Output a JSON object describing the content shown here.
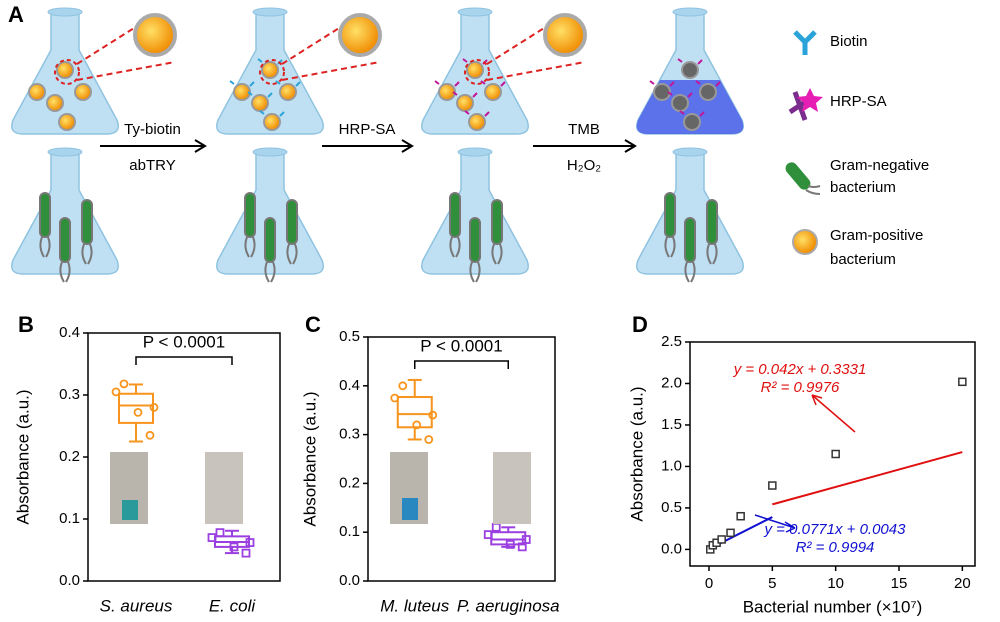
{
  "diagram": {
    "label": "A",
    "steps": [
      {
        "above": "Ty-biotin",
        "below": "abTRY"
      },
      {
        "above": "HRP-SA"
      },
      {
        "above": "TMB",
        "below": "H₂O₂"
      }
    ],
    "legend": [
      "Biotin",
      "HRP-SA",
      "Gram-negative bacterium",
      "Gram-positive bacterium"
    ]
  },
  "chart_data": [
    {
      "type": "box",
      "label": "B",
      "ylabel": "Absorbance (a.u.)",
      "annotation": "P < 0.0001",
      "categories": [
        "S. aureus",
        "E. coli"
      ],
      "colors": [
        "#f7941d",
        "#9b3fe0"
      ],
      "boxes": [
        {
          "min": 0.225,
          "q1": 0.255,
          "median": 0.283,
          "q3": 0.302,
          "max": 0.317,
          "points": [
            0.318,
            0.305,
            0.28,
            0.272,
            0.235
          ]
        },
        {
          "min": 0.045,
          "q1": 0.055,
          "median": 0.063,
          "q3": 0.072,
          "max": 0.081,
          "points": [
            0.078,
            0.07,
            0.062,
            0.055,
            0.045
          ]
        }
      ],
      "ylim": [
        0,
        0.4
      ],
      "yticks": [
        {
          "value": 0,
          "label": "0.0"
        },
        0.1,
        0.2,
        0.3,
        0.4
      ]
    },
    {
      "type": "box",
      "label": "C",
      "ylabel": "Absorbance (a.u.)",
      "annotation": "P < 0.0001",
      "categories": [
        "M. luteus",
        "P. aeruginosa"
      ],
      "colors": [
        "#f7941d",
        "#9b3fe0"
      ],
      "boxes": [
        {
          "min": 0.29,
          "q1": 0.315,
          "median": 0.342,
          "q3": 0.377,
          "max": 0.412,
          "points": [
            0.4,
            0.375,
            0.34,
            0.32,
            0.29
          ]
        },
        {
          "min": 0.07,
          "q1": 0.075,
          "median": 0.085,
          "q3": 0.1,
          "max": 0.11,
          "points": [
            0.11,
            0.095,
            0.085,
            0.075,
            0.07
          ]
        }
      ],
      "ylim": [
        0,
        0.5
      ],
      "yticks": [
        {
          "value": 0,
          "label": "0.0"
        },
        0.1,
        0.2,
        0.3,
        0.4,
        0.5
      ]
    },
    {
      "type": "scatter",
      "label": "D",
      "ylabel": "Absorbance (a.u.)",
      "xlabel": "Bacterial number (×10⁷)",
      "x": [
        0.1,
        0.3,
        0.6,
        1,
        1.7,
        2.5,
        5,
        10,
        20
      ],
      "values": [
        0.0,
        0.05,
        0.08,
        0.12,
        0.2,
        0.4,
        0.77,
        1.15,
        2.02
      ],
      "fits": [
        {
          "color": "#1010d0",
          "x_range": [
            0,
            5
          ],
          "equation": "y = 0.0771x + 0.0043",
          "r2": "R² = 0.9994"
        },
        {
          "color": "#e01010",
          "x_range": [
            5,
            20
          ],
          "equation": "y = 0.042x + 0.3331",
          "r2": "R² = 0.9976"
        }
      ],
      "xlim": [
        -1.5,
        21
      ],
      "xticks": [
        0,
        5,
        10,
        15,
        20
      ],
      "ylim": [
        -0.2,
        2.5
      ],
      "yticks": [
        {
          "value": 0,
          "label": "0.0"
        },
        0.5,
        {
          "value": 1,
          "label": "1.0"
        },
        1.5,
        {
          "value": 2,
          "label": "2.0"
        },
        2.5
      ]
    }
  ]
}
